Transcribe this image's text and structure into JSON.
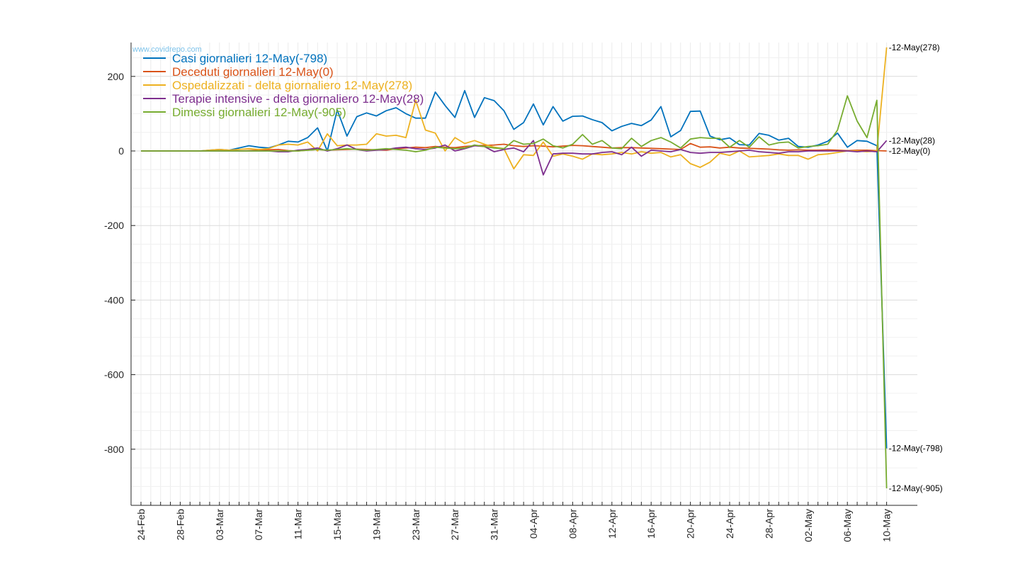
{
  "watermark": "www.covidrepo.com",
  "chart_data": {
    "type": "line",
    "x_start": "24-Feb",
    "x_end": "12-May",
    "x_tick_labels": [
      "24-Feb",
      "28-Feb",
      "03-Mar",
      "07-Mar",
      "11-Mar",
      "15-Mar",
      "19-Mar",
      "23-Mar",
      "27-Mar",
      "31-Mar",
      "04-Apr",
      "08-Apr",
      "12-Apr",
      "16-Apr",
      "20-Apr",
      "24-Apr",
      "28-Apr",
      "02-May",
      "06-May",
      "10-May"
    ],
    "y_ticks": [
      200,
      0,
      -200,
      -400,
      -600,
      -800
    ],
    "ylim": [
      -950,
      290
    ],
    "grid": true,
    "legend_position": "top-left",
    "series": [
      {
        "name": "Casi giornalieri 12-May(-798)",
        "color": "#0072BD",
        "end_label": "12-May(-798)",
        "values": [
          0,
          0,
          0,
          0,
          0,
          0,
          0,
          2,
          4,
          2,
          8,
          14,
          10,
          8,
          16,
          26,
          24,
          36,
          62,
          0,
          110,
          40,
          92,
          102,
          94,
          108,
          116,
          100,
          88,
          88,
          158,
          122,
          90,
          162,
          90,
          143,
          135,
          108,
          58,
          76,
          126,
          70,
          119,
          80,
          93,
          94,
          84,
          76,
          54,
          66,
          74,
          68,
          83,
          119,
          38,
          55,
          106,
          107,
          40,
          30,
          35,
          17,
          16,
          47,
          42,
          29,
          34,
          12,
          10,
          16,
          26,
          48,
          10,
          28,
          26,
          14,
          -798
        ]
      },
      {
        "name": "Deceduti giornalieri 12-May(0)",
        "color": "#D95319",
        "end_label": "12-May(0)",
        "values": [
          0,
          0,
          0,
          0,
          0,
          0,
          0,
          0,
          0,
          0,
          0,
          1,
          2,
          3,
          4,
          1,
          0,
          2,
          4,
          2,
          3,
          4,
          5,
          4,
          3,
          2,
          6,
          8,
          10,
          9,
          12,
          10,
          9,
          12,
          14,
          15,
          16,
          18,
          14,
          12,
          14,
          13,
          11,
          13,
          15,
          14,
          12,
          10,
          8,
          9,
          9,
          8,
          7,
          6,
          5,
          4,
          20,
          10,
          11,
          8,
          10,
          8,
          7,
          6,
          5,
          3,
          2,
          3,
          2,
          2,
          3,
          2,
          1,
          2,
          2,
          1,
          0
        ]
      },
      {
        "name": "Ospedalizzati - delta giornaliero 12-May(278)",
        "color": "#EDB120",
        "end_label": "12-May(278)",
        "values": [
          0,
          0,
          0,
          0,
          0,
          0,
          0,
          2,
          4,
          2,
          4,
          6,
          4,
          6,
          16,
          18,
          16,
          24,
          0,
          46,
          14,
          16,
          16,
          18,
          46,
          40,
          42,
          36,
          136,
          56,
          48,
          0,
          36,
          20,
          28,
          18,
          10,
          6,
          -48,
          -10,
          -12,
          24,
          -14,
          -8,
          -14,
          -22,
          -8,
          -10,
          -8,
          -4,
          -8,
          -2,
          -6,
          -4,
          -16,
          -10,
          -34,
          -44,
          -30,
          -6,
          -12,
          0,
          -16,
          -14,
          -12,
          -8,
          -12,
          -12,
          -22,
          -10,
          -8,
          -4,
          0,
          0,
          -2,
          0,
          278
        ]
      },
      {
        "name": "Terapie intensive - delta giornaliero 12-May(28)",
        "color": "#7E2F8E",
        "end_label": "12-May(28)",
        "values": [
          0,
          0,
          0,
          0,
          0,
          0,
          0,
          0,
          0,
          0,
          0,
          0,
          0,
          0,
          -2,
          -2,
          2,
          4,
          8,
          0,
          6,
          16,
          4,
          0,
          2,
          4,
          8,
          10,
          6,
          4,
          8,
          16,
          0,
          6,
          14,
          12,
          -2,
          4,
          8,
          -2,
          28,
          -64,
          -8,
          -6,
          -6,
          -8,
          -8,
          -4,
          -2,
          -10,
          10,
          -14,
          2,
          0,
          -2,
          4,
          -4,
          -6,
          -4,
          -4,
          -2,
          0,
          2,
          -2,
          -4,
          -6,
          -2,
          -2,
          0,
          0,
          0,
          0,
          0,
          -2,
          0,
          -2,
          28
        ]
      },
      {
        "name": "Dimessi giornalieri 12-May(-905)",
        "color": "#77AC30",
        "end_label": "12-May(-905)",
        "values": [
          0,
          0,
          0,
          0,
          0,
          0,
          0,
          0,
          0,
          0,
          0,
          0,
          0,
          0,
          0,
          0,
          0,
          2,
          4,
          2,
          4,
          6,
          4,
          2,
          4,
          6,
          4,
          2,
          -2,
          2,
          10,
          8,
          6,
          8,
          16,
          12,
          8,
          6,
          28,
          18,
          20,
          32,
          14,
          8,
          18,
          44,
          18,
          28,
          8,
          6,
          34,
          12,
          28,
          36,
          24,
          8,
          32,
          36,
          34,
          34,
          10,
          28,
          10,
          38,
          16,
          22,
          24,
          8,
          12,
          14,
          18,
          56,
          148,
          80,
          36,
          136,
          -905
        ]
      }
    ]
  }
}
